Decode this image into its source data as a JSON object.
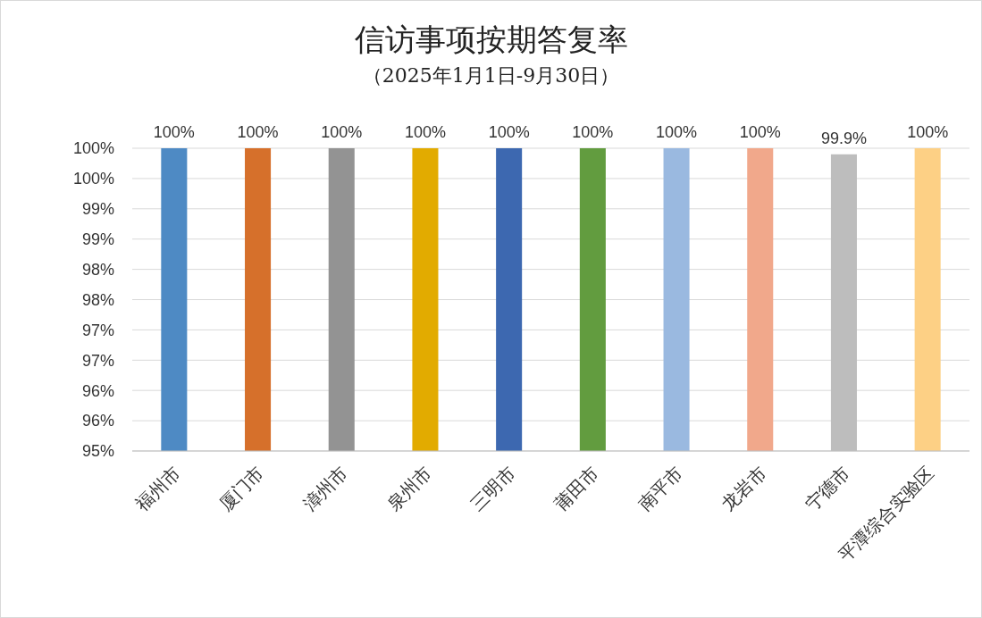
{
  "chart_data": {
    "type": "bar",
    "title": "信访事项按期答复率",
    "subtitle": "（2025年1月1日-9月30日）",
    "categories": [
      "福州市",
      "厦门市",
      "漳州市",
      "泉州市",
      "三明市",
      "莆田市",
      "南平市",
      "龙岩市",
      "宁德市",
      "平潭综合实验区"
    ],
    "values": [
      100,
      100,
      100,
      100,
      100,
      100,
      100,
      100,
      99.9,
      100
    ],
    "colors": [
      "#4e8ac4",
      "#d6702b",
      "#939393",
      "#e2ab00",
      "#3d68b0",
      "#629c3f",
      "#9ab9e0",
      "#f1a88b",
      "#bdbdbd",
      "#fdd085"
    ],
    "value_labels": [
      "100%",
      "100%",
      "100%",
      "100%",
      "100%",
      "100%",
      "100%",
      "100%",
      "99.9%",
      "100%"
    ],
    "ylim": [
      95,
      100
    ],
    "yticks": [
      {
        "value": 95,
        "label": "95%"
      },
      {
        "value": 95.5,
        "label": "96%"
      },
      {
        "value": 96,
        "label": "96%"
      },
      {
        "value": 96.5,
        "label": "97%"
      },
      {
        "value": 97,
        "label": "97%"
      },
      {
        "value": 97.5,
        "label": "98%"
      },
      {
        "value": 98,
        "label": "98%"
      },
      {
        "value": 98.5,
        "label": "99%"
      },
      {
        "value": 99,
        "label": "99%"
      },
      {
        "value": 99.5,
        "label": "100%"
      },
      {
        "value": 100,
        "label": "100%"
      }
    ],
    "grid": "y"
  }
}
